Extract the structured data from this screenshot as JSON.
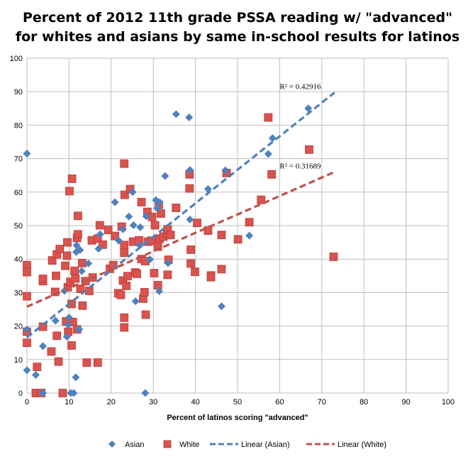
{
  "chart_data": {
    "type": "scatter",
    "title_lines": [
      "Percent of 2012 11th grade PSSA reading w/ \"advanced\"",
      "for whites and asians by same in-school results for latinos"
    ],
    "xlabel": "Percent of latinos scoring \"advanced\"",
    "ylabel": "",
    "xlim": [
      0,
      100
    ],
    "ylim": [
      0,
      100
    ],
    "x_ticks": [
      0,
      10,
      20,
      30,
      40,
      50,
      60,
      70,
      80,
      90,
      100
    ],
    "y_ticks": [
      0,
      10,
      20,
      30,
      40,
      50,
      60,
      70,
      80,
      90,
      100
    ],
    "grid": true,
    "legend_position": "bottom",
    "legend": [
      "Asian",
      "White",
      "Linear (Asian)",
      "Linear (White)"
    ],
    "colors": {
      "asian": "#4f81bd",
      "white": "#d9534f",
      "white_edge": "#b93b38",
      "asian_trend": "#4f81bd",
      "white_trend": "#c0504d",
      "grid": "#bfbfbf"
    },
    "series": [
      {
        "name": "Asian",
        "marker": "diamond",
        "points": [
          [
            0,
            71.5
          ],
          [
            0,
            6.8
          ],
          [
            0,
            19
          ],
          [
            2.1,
            5.4
          ],
          [
            3.8,
            14
          ],
          [
            3.8,
            0
          ],
          [
            6.8,
            21.6
          ],
          [
            8.9,
            30.5
          ],
          [
            9.5,
            16.8
          ],
          [
            9.8,
            20.4
          ],
          [
            10,
            22.5
          ],
          [
            10.4,
            0
          ],
          [
            11.1,
            0
          ],
          [
            11.6,
            4.7
          ],
          [
            11.7,
            42.1
          ],
          [
            11.8,
            44.1
          ],
          [
            12.4,
            19
          ],
          [
            12.6,
            42.7
          ],
          [
            13,
            36.4
          ],
          [
            14.6,
            38.7
          ],
          [
            17,
            43.1
          ],
          [
            17.4,
            47.4
          ],
          [
            20.9,
            57
          ],
          [
            21.8,
            45.5
          ],
          [
            22.8,
            48.9
          ],
          [
            24.2,
            52.7
          ],
          [
            25.1,
            60
          ],
          [
            25.3,
            50.1
          ],
          [
            25.8,
            27.4
          ],
          [
            26.8,
            44.1
          ],
          [
            26.9,
            49.5
          ],
          [
            28.1,
            0
          ],
          [
            28.3,
            52.8
          ],
          [
            29.2,
            39.9
          ],
          [
            30.6,
            57.6
          ],
          [
            30.9,
            55.2
          ],
          [
            31.5,
            57
          ],
          [
            31.4,
            30.4
          ],
          [
            32.8,
            64.8
          ],
          [
            33.5,
            38.8
          ],
          [
            35.4,
            83.3
          ],
          [
            38.5,
            82.3
          ],
          [
            38.7,
            66.6
          ],
          [
            38.7,
            51.8
          ],
          [
            43,
            60.9
          ],
          [
            46.2,
            25.9
          ],
          [
            47.1,
            66.5
          ],
          [
            52.8,
            47
          ],
          [
            57.3,
            71.4
          ],
          [
            58.3,
            76.1
          ],
          [
            66.8,
            85
          ]
        ]
      },
      {
        "name": "White",
        "marker": "square",
        "points": [
          [
            0,
            38.2
          ],
          [
            0,
            36.1
          ],
          [
            0,
            28.9
          ],
          [
            0,
            18.3
          ],
          [
            0,
            15
          ],
          [
            2.1,
            0
          ],
          [
            2.4,
            7.8
          ],
          [
            3.4,
            0
          ],
          [
            3.8,
            33.4
          ],
          [
            3.8,
            34.1
          ],
          [
            3.8,
            19.8
          ],
          [
            5.8,
            12.4
          ],
          [
            6,
            39.6
          ],
          [
            6.7,
            30.2
          ],
          [
            6.9,
            35
          ],
          [
            7.1,
            41.4
          ],
          [
            7.1,
            17.1
          ],
          [
            7.5,
            9.4
          ],
          [
            7.8,
            43
          ],
          [
            8.5,
            0
          ],
          [
            9.1,
            38
          ],
          [
            9.3,
            21.4
          ],
          [
            9.5,
            41
          ],
          [
            9.6,
            45
          ],
          [
            9.7,
            31.6
          ],
          [
            9.8,
            18.3
          ],
          [
            10.1,
            60.3
          ],
          [
            10.3,
            33.2
          ],
          [
            10.6,
            14.2
          ],
          [
            10.6,
            26.6
          ],
          [
            10.7,
            64
          ],
          [
            10.9,
            21.2
          ],
          [
            11.3,
            36.5
          ],
          [
            11.5,
            34.2
          ],
          [
            11.9,
            19
          ],
          [
            11.9,
            46.3
          ],
          [
            12.1,
            47.4
          ],
          [
            12.1,
            52.9
          ],
          [
            12.7,
            31.1
          ],
          [
            13.1,
            38.8
          ],
          [
            13.2,
            26.1
          ],
          [
            13.9,
            33.4
          ],
          [
            14.2,
            9.1
          ],
          [
            14.8,
            30.5
          ],
          [
            15.4,
            45.6
          ],
          [
            15.6,
            34.5
          ],
          [
            16.8,
            9.1
          ],
          [
            16.8,
            46.1
          ],
          [
            17.3,
            50.1
          ],
          [
            18,
            44.3
          ],
          [
            19.3,
            48.7
          ],
          [
            19.7,
            37.1
          ],
          [
            20.5,
            38.2
          ],
          [
            20.9,
            46.9
          ],
          [
            21.7,
            29.8
          ],
          [
            22.3,
            29.3
          ],
          [
            22.5,
            49.7
          ],
          [
            22.8,
            33.6
          ],
          [
            23.1,
            68.5
          ],
          [
            23.1,
            44.2
          ],
          [
            23.1,
            41.9
          ],
          [
            23.2,
            59.2
          ],
          [
            23.1,
            22.5
          ],
          [
            23.1,
            19.6
          ],
          [
            23.6,
            32
          ],
          [
            23.9,
            34.9
          ],
          [
            24.5,
            60.9
          ],
          [
            25.2,
            45.2
          ],
          [
            25.7,
            36
          ],
          [
            26.1,
            35.6
          ],
          [
            26.6,
            45.6
          ],
          [
            27.2,
            57
          ],
          [
            27.2,
            40
          ],
          [
            27.6,
            28.2
          ],
          [
            27.9,
            30.1
          ],
          [
            28.1,
            39.4
          ],
          [
            28.2,
            23.4
          ],
          [
            28.6,
            54.1
          ],
          [
            28.7,
            45.2
          ],
          [
            29.6,
            45.5
          ],
          [
            29.7,
            52.6
          ],
          [
            30.2,
            35.8
          ],
          [
            30.4,
            50.1
          ],
          [
            31.1,
            43.7
          ],
          [
            31.1,
            32.2
          ],
          [
            31.3,
            56.2
          ],
          [
            31.5,
            46.1
          ],
          [
            31.8,
            53.6
          ],
          [
            32.4,
            46.7
          ],
          [
            33.3,
            47.7
          ],
          [
            33.4,
            48.9
          ],
          [
            33.4,
            35.3
          ],
          [
            33.6,
            39.8
          ],
          [
            34.1,
            47.2
          ],
          [
            35.4,
            55.3
          ],
          [
            38.6,
            65.3
          ],
          [
            38.6,
            61.1
          ],
          [
            38.9,
            42.8
          ],
          [
            38.9,
            38.7
          ],
          [
            39.9,
            36.2
          ],
          [
            40.4,
            50.8
          ],
          [
            43,
            48.5
          ],
          [
            43.7,
            35.1
          ],
          [
            43.7,
            34.6
          ],
          [
            46.2,
            47.2
          ],
          [
            46.2,
            37
          ],
          [
            47.4,
            65.7
          ],
          [
            50.1,
            45.9
          ],
          [
            52.8,
            51
          ],
          [
            55.6,
            57.7
          ],
          [
            57.3,
            82.3
          ],
          [
            58.1,
            65.3
          ],
          [
            67,
            72.7
          ],
          [
            72.8,
            40.7
          ]
        ]
      }
    ],
    "trendlines": [
      {
        "name": "Linear (Asian)",
        "from": [
          0,
          16.6
        ],
        "to": [
          73,
          89.7
        ],
        "r2_label": "R² = 0.42916",
        "r2_anchor": [
          60,
          89.5
        ]
      },
      {
        "name": "Linear (White)",
        "from": [
          0,
          25.8
        ],
        "to": [
          73,
          66
        ],
        "r2_label": "R² = 0.31689",
        "r2_anchor": [
          60,
          65.8
        ]
      }
    ]
  }
}
